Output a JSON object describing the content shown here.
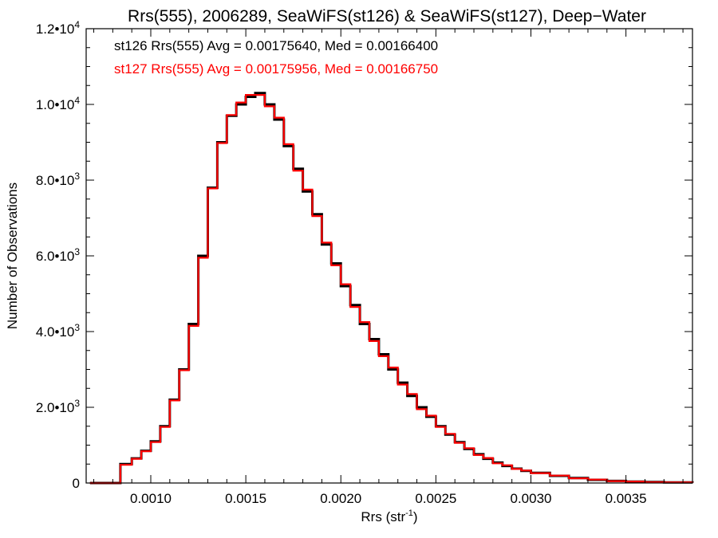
{
  "chart_data": {
    "type": "line",
    "title": "Rrs(555), 2006289, SeaWiFS(st126) & SeaWiFS(st127), Deep−Water",
    "xlabel": "Rrs (str",
    "xlabel_sup": "-1",
    "xlabel_end": ")",
    "ylabel": "Number of Observations",
    "xlim": [
      0.00066,
      0.00385
    ],
    "ylim": [
      0,
      12000
    ],
    "x_ticks": [
      0.001,
      0.0015,
      0.002,
      0.0025,
      0.003,
      0.0035
    ],
    "x_tick_labels": [
      "0.0010",
      "0.0015",
      "0.0020",
      "0.0025",
      "0.0030",
      "0.0035"
    ],
    "y_ticks": [
      0,
      2000,
      4000,
      6000,
      8000,
      10000,
      12000
    ],
    "y_tick_labels": [
      {
        "base": "0",
        "exp": ""
      },
      {
        "base": "2.0•10",
        "exp": "3"
      },
      {
        "base": "4.0•10",
        "exp": "3"
      },
      {
        "base": "6.0•10",
        "exp": "3"
      },
      {
        "base": "8.0•10",
        "exp": "3"
      },
      {
        "base": "1.0•10",
        "exp": "4"
      },
      {
        "base": "1.2•10",
        "exp": "4"
      }
    ],
    "annotations": [
      {
        "text": "st126 Rrs(555) Avg = 0.00175640, Med = 0.00166400",
        "color": "#000000"
      },
      {
        "text": "st127 Rrs(555) Avg = 0.00175956, Med = 0.00166750",
        "color": "#ff0000"
      }
    ],
    "series": [
      {
        "color": "#000000",
        "x": [
          0.00068,
          0.0008,
          0.00084,
          0.0009,
          0.00095,
          0.001,
          0.00105,
          0.0011,
          0.00115,
          0.0012,
          0.00125,
          0.0013,
          0.00135,
          0.0014,
          0.00145,
          0.0015,
          0.00155,
          0.0016,
          0.00165,
          0.0017,
          0.00175,
          0.0018,
          0.00185,
          0.0019,
          0.00195,
          0.002,
          0.00205,
          0.0021,
          0.00215,
          0.0022,
          0.00225,
          0.0023,
          0.00235,
          0.0024,
          0.00245,
          0.0025,
          0.00255,
          0.0026,
          0.00265,
          0.0027,
          0.00275,
          0.0028,
          0.00285,
          0.0029,
          0.00295,
          0.003,
          0.0031,
          0.0032,
          0.0033,
          0.0034,
          0.0035,
          0.0036,
          0.0037,
          0.00385
        ],
        "y": [
          0,
          0,
          500,
          650,
          850,
          1100,
          1500,
          2200,
          3000,
          4200,
          6000,
          7800,
          9000,
          9700,
          10000,
          10200,
          10300,
          10000,
          9600,
          8900,
          8300,
          7700,
          7100,
          6300,
          5800,
          5200,
          4700,
          4200,
          3800,
          3400,
          3000,
          2650,
          2300,
          2000,
          1750,
          1500,
          1280,
          1080,
          900,
          760,
          640,
          540,
          450,
          380,
          320,
          270,
          190,
          130,
          85,
          55,
          35,
          25,
          15,
          8
        ]
      },
      {
        "color": "#ff0000",
        "x": [
          0.00068,
          0.0008,
          0.00084,
          0.0009,
          0.00095,
          0.001,
          0.00105,
          0.0011,
          0.00115,
          0.0012,
          0.00125,
          0.0013,
          0.00135,
          0.0014,
          0.00145,
          0.0015,
          0.00155,
          0.0016,
          0.00165,
          0.0017,
          0.00175,
          0.0018,
          0.00185,
          0.0019,
          0.00195,
          0.002,
          0.00205,
          0.0021,
          0.00215,
          0.0022,
          0.00225,
          0.0023,
          0.00235,
          0.0024,
          0.00245,
          0.0025,
          0.00255,
          0.0026,
          0.00265,
          0.0027,
          0.00275,
          0.0028,
          0.00285,
          0.0029,
          0.00295,
          0.003,
          0.0031,
          0.0032,
          0.0033,
          0.0034,
          0.0035,
          0.0036,
          0.0037,
          0.00385
        ],
        "y": [
          0,
          0,
          480,
          640,
          840,
          1080,
          1480,
          2180,
          2980,
          4150,
          5950,
          7780,
          8980,
          9720,
          10050,
          10250,
          10250,
          9950,
          9650,
          8950,
          8250,
          7750,
          7050,
          6350,
          5750,
          5250,
          4650,
          4250,
          3750,
          3350,
          3050,
          2600,
          2350,
          1950,
          1780,
          1480,
          1300,
          1060,
          920,
          740,
          660,
          520,
          470,
          370,
          330,
          260,
          195,
          125,
          90,
          50,
          38,
          22,
          17,
          6
        ]
      }
    ]
  }
}
